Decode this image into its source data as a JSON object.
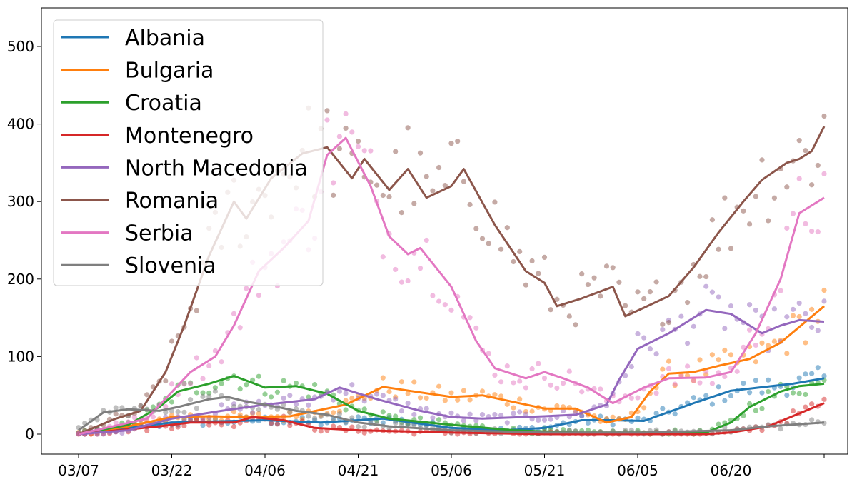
{
  "chart_data": {
    "type": "line",
    "title": "",
    "xlabel": "",
    "ylabel": "",
    "x_start": "03/07",
    "x_end": "07/05",
    "x_ticks": [
      "03/07",
      "03/22",
      "04/06",
      "04/21",
      "05/06",
      "05/21",
      "06/05",
      "06/20",
      ""
    ],
    "ylim": [
      -22,
      550
    ],
    "y_ticks": [
      "0",
      "100",
      "200",
      "300",
      "400",
      "500"
    ],
    "y_tick_values": [
      0,
      100,
      200,
      300,
      400,
      500
    ],
    "grid": false,
    "legend_position": "top-left",
    "markers": "raw daily values shown as semi-transparent dots, solid line is smoothed trend",
    "series": [
      {
        "name": "Albania",
        "color": "#1f77b4",
        "points": [
          [
            "03/07",
            0
          ],
          [
            "03/22",
            15
          ],
          [
            "04/06",
            18
          ],
          [
            "04/15",
            15
          ],
          [
            "04/25",
            20
          ],
          [
            "05/06",
            8
          ],
          [
            "05/15",
            5
          ],
          [
            "05/21",
            8
          ],
          [
            "05/27",
            18
          ],
          [
            "06/01",
            18
          ],
          [
            "06/06",
            17
          ],
          [
            "06/14",
            40
          ],
          [
            "06/20",
            56
          ],
          [
            "06/30",
            65
          ],
          [
            "07/05",
            72
          ]
        ]
      },
      {
        "name": "Bulgaria",
        "color": "#ff7f0e",
        "points": [
          [
            "03/07",
            0
          ],
          [
            "03/15",
            10
          ],
          [
            "03/22",
            22
          ],
          [
            "03/28",
            23
          ],
          [
            "04/03",
            22
          ],
          [
            "04/10",
            23
          ],
          [
            "04/19",
            38
          ],
          [
            "04/25",
            61
          ],
          [
            "04/30",
            55
          ],
          [
            "05/06",
            48
          ],
          [
            "05/11",
            50
          ],
          [
            "05/21",
            33
          ],
          [
            "05/26",
            33
          ],
          [
            "05/31",
            15
          ],
          [
            "06/04",
            22
          ],
          [
            "06/07",
            55
          ],
          [
            "06/10",
            78
          ],
          [
            "06/14",
            80
          ],
          [
            "06/18",
            88
          ],
          [
            "06/23",
            97
          ],
          [
            "06/28",
            118
          ],
          [
            "07/05",
            165
          ]
        ]
      },
      {
        "name": "Croatia",
        "color": "#2ca02c",
        "points": [
          [
            "03/07",
            0
          ],
          [
            "03/15",
            12
          ],
          [
            "03/20",
            35
          ],
          [
            "03/23",
            55
          ],
          [
            "03/28",
            65
          ],
          [
            "04/01",
            75
          ],
          [
            "04/06",
            60
          ],
          [
            "04/11",
            62
          ],
          [
            "04/16",
            52
          ],
          [
            "04/21",
            30
          ],
          [
            "04/26",
            20
          ],
          [
            "05/06",
            12
          ],
          [
            "05/16",
            5
          ],
          [
            "05/26",
            2
          ],
          [
            "06/06",
            2
          ],
          [
            "06/16",
            2
          ],
          [
            "06/20",
            15
          ],
          [
            "06/23",
            35
          ],
          [
            "06/28",
            55
          ],
          [
            "07/01",
            62
          ],
          [
            "07/05",
            65
          ]
        ]
      },
      {
        "name": "Montenegro",
        "color": "#d62728",
        "points": [
          [
            "03/07",
            0
          ],
          [
            "03/20",
            10
          ],
          [
            "03/25",
            15
          ],
          [
            "04/01",
            15
          ],
          [
            "04/04",
            22
          ],
          [
            "04/09",
            18
          ],
          [
            "04/14",
            8
          ],
          [
            "04/21",
            5
          ],
          [
            "05/06",
            2
          ],
          [
            "05/21",
            0
          ],
          [
            "06/06",
            0
          ],
          [
            "06/16",
            0
          ],
          [
            "06/20",
            2
          ],
          [
            "06/26",
            10
          ],
          [
            "07/05",
            40
          ]
        ]
      },
      {
        "name": "North Macedonia",
        "color": "#9467bd",
        "points": [
          [
            "03/07",
            0
          ],
          [
            "03/15",
            5
          ],
          [
            "03/22",
            20
          ],
          [
            "03/30",
            30
          ],
          [
            "04/06",
            38
          ],
          [
            "04/14",
            45
          ],
          [
            "04/18",
            60
          ],
          [
            "04/24",
            45
          ],
          [
            "05/01",
            30
          ],
          [
            "05/06",
            22
          ],
          [
            "05/11",
            20
          ],
          [
            "05/21",
            23
          ],
          [
            "05/26",
            25
          ],
          [
            "05/31",
            38
          ],
          [
            "06/02",
            70
          ],
          [
            "06/05",
            110
          ],
          [
            "06/10",
            130
          ],
          [
            "06/16",
            160
          ],
          [
            "06/20",
            155
          ],
          [
            "06/25",
            130
          ],
          [
            "06/28",
            140
          ],
          [
            "07/01",
            147
          ],
          [
            "07/05",
            145
          ]
        ]
      },
      {
        "name": "Romania",
        "color": "#8c564b",
        "points": [
          [
            "03/07",
            0
          ],
          [
            "03/13",
            20
          ],
          [
            "03/17",
            30
          ],
          [
            "03/21",
            80
          ],
          [
            "03/24",
            140
          ],
          [
            "03/28",
            230
          ],
          [
            "04/01",
            300
          ],
          [
            "04/03",
            278
          ],
          [
            "04/07",
            330
          ],
          [
            "04/12",
            362
          ],
          [
            "04/16",
            370
          ],
          [
            "04/20",
            330
          ],
          [
            "04/22",
            355
          ],
          [
            "04/26",
            315
          ],
          [
            "04/29",
            342
          ],
          [
            "05/02",
            305
          ],
          [
            "05/06",
            320
          ],
          [
            "05/08",
            342
          ],
          [
            "05/13",
            270
          ],
          [
            "05/18",
            210
          ],
          [
            "05/21",
            195
          ],
          [
            "05/23",
            165
          ],
          [
            "05/27",
            175
          ],
          [
            "06/01",
            190
          ],
          [
            "06/03",
            152
          ],
          [
            "06/06",
            163
          ],
          [
            "06/10",
            178
          ],
          [
            "06/14",
            215
          ],
          [
            "06/18",
            260
          ],
          [
            "06/22",
            300
          ],
          [
            "06/25",
            328
          ],
          [
            "06/29",
            350
          ],
          [
            "07/01",
            355
          ],
          [
            "07/03",
            365
          ],
          [
            "07/05",
            397
          ]
        ]
      },
      {
        "name": "Serbia",
        "color": "#e377c2",
        "points": [
          [
            "03/07",
            0
          ],
          [
            "03/18",
            20
          ],
          [
            "03/25",
            80
          ],
          [
            "03/29",
            100
          ],
          [
            "04/01",
            140
          ],
          [
            "04/05",
            210
          ],
          [
            "04/09",
            240
          ],
          [
            "04/13",
            275
          ],
          [
            "04/16",
            360
          ],
          [
            "04/19",
            382
          ],
          [
            "04/23",
            320
          ],
          [
            "04/26",
            255
          ],
          [
            "04/29",
            232
          ],
          [
            "05/01",
            240
          ],
          [
            "05/03",
            220
          ],
          [
            "05/06",
            190
          ],
          [
            "05/10",
            120
          ],
          [
            "05/13",
            85
          ],
          [
            "05/18",
            72
          ],
          [
            "05/21",
            80
          ],
          [
            "05/24",
            72
          ],
          [
            "05/28",
            60
          ],
          [
            "06/01",
            40
          ],
          [
            "06/06",
            60
          ],
          [
            "06/10",
            72
          ],
          [
            "06/16",
            73
          ],
          [
            "06/20",
            80
          ],
          [
            "06/24",
            130
          ],
          [
            "06/28",
            200
          ],
          [
            "07/01",
            285
          ],
          [
            "07/05",
            305
          ]
        ]
      },
      {
        "name": "Slovenia",
        "color": "#7f7f7f",
        "points": [
          [
            "03/07",
            5
          ],
          [
            "03/11",
            28
          ],
          [
            "03/15",
            32
          ],
          [
            "03/20",
            30
          ],
          [
            "03/23",
            35
          ],
          [
            "03/28",
            45
          ],
          [
            "03/31",
            48
          ],
          [
            "04/03",
            42
          ],
          [
            "04/08",
            35
          ],
          [
            "04/11",
            30
          ],
          [
            "04/16",
            25
          ],
          [
            "04/21",
            15
          ],
          [
            "04/26",
            10
          ],
          [
            "05/06",
            5
          ],
          [
            "05/21",
            2
          ],
          [
            "06/06",
            2
          ],
          [
            "06/20",
            5
          ],
          [
            "06/26",
            10
          ],
          [
            "07/05",
            15
          ]
        ]
      }
    ]
  }
}
